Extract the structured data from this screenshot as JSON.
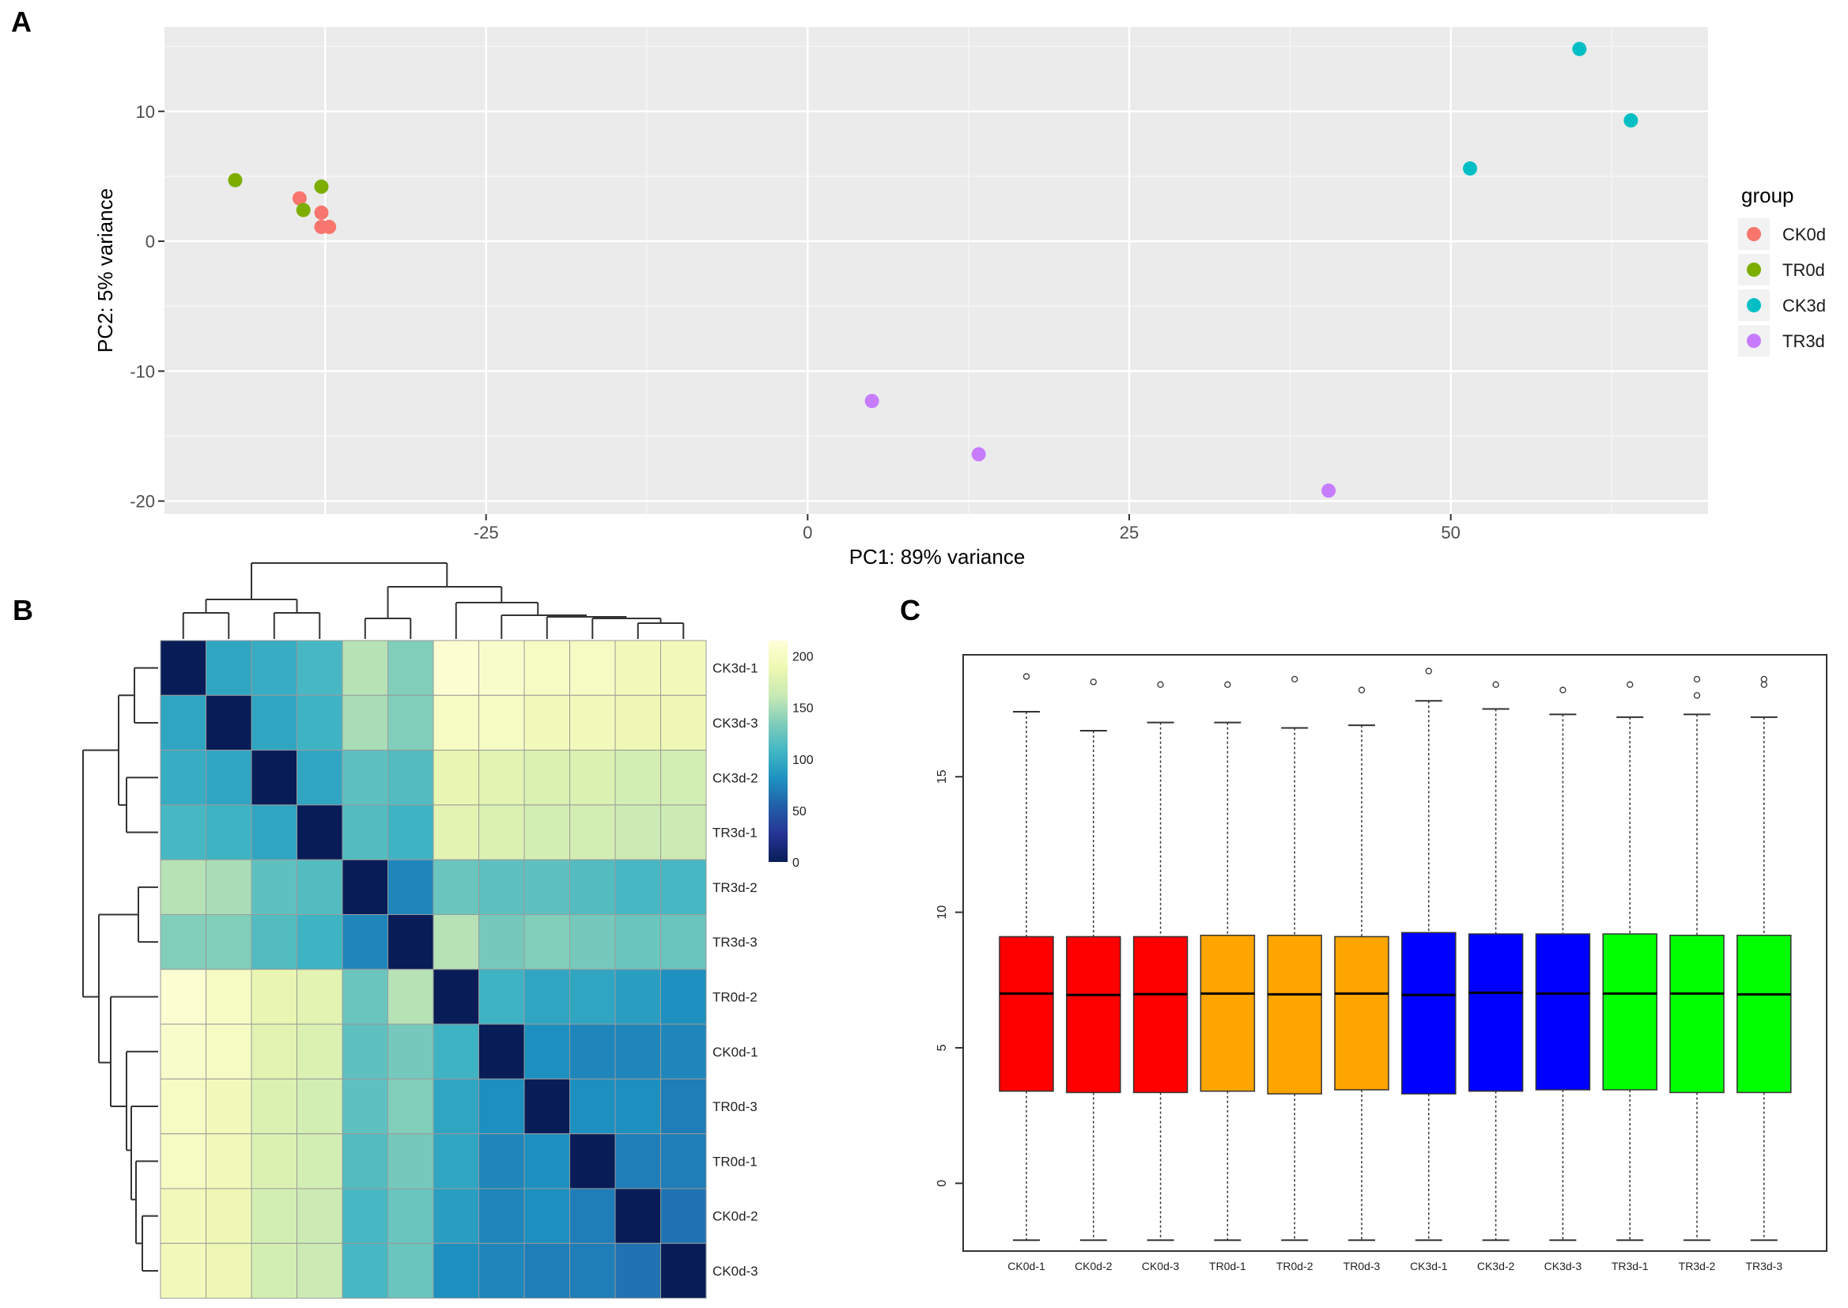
{
  "panels": {
    "a": "A",
    "b": "B",
    "c": "C"
  },
  "chart_data": [
    {
      "type": "scatter",
      "panel": "A",
      "title": "",
      "xlabel": "PC1: 89% variance",
      "ylabel": "PC2: 5% variance",
      "xlim": [
        -50,
        70
      ],
      "ylim": [
        -21,
        16.5
      ],
      "xticks": [
        -25,
        0,
        25,
        50
      ],
      "xtick_labels": [
        "-25",
        "0",
        "25",
        "50"
      ],
      "yticks": [
        10,
        0,
        -10,
        -20
      ],
      "ytick_labels": [
        "10",
        "0",
        "-10",
        "-20"
      ],
      "grid": true,
      "legend_title": "group",
      "legend_position": "right",
      "series": [
        {
          "name": "CK0d",
          "color": "#F8766D",
          "x": [
            -39.5,
            -37.8,
            -37.2,
            -37.8
          ],
          "y": [
            3.3,
            2.2,
            1.1,
            1.1
          ]
        },
        {
          "name": "TR0d",
          "color": "#7CAE00",
          "x": [
            -44.5,
            -39.2,
            -37.8
          ],
          "y": [
            4.7,
            2.4,
            4.2
          ]
        },
        {
          "name": "CK3d",
          "color": "#00BFC4",
          "x": [
            51.5,
            60,
            64
          ],
          "y": [
            5.6,
            14.8,
            9.3
          ]
        },
        {
          "name": "TR3d",
          "color": "#C77CFF",
          "x": [
            5,
            13.3,
            40.5
          ],
          "y": [
            -12.3,
            -16.4,
            -19.2
          ]
        }
      ]
    },
    {
      "type": "heatmap",
      "panel": "B",
      "row_labels": [
        "CK3d-1",
        "CK3d-3",
        "CK3d-2",
        "TR3d-1",
        "TR3d-2",
        "TR3d-3",
        "TR0d-2",
        "CK0d-1",
        "TR0d-3",
        "TR0d-1",
        "CK0d-2",
        "CK0d-3"
      ],
      "colorbar_ticks": [
        200,
        150,
        100,
        50,
        0
      ],
      "colorbar_tick_labels": [
        "200",
        "150",
        "100",
        "50",
        "0"
      ],
      "value_range": [
        0,
        215
      ],
      "values": [
        [
          0,
          95,
          100,
          110,
          155,
          135,
          210,
          205,
          200,
          200,
          195,
          195
        ],
        [
          95,
          0,
          95,
          105,
          150,
          135,
          200,
          200,
          195,
          195,
          190,
          190
        ],
        [
          100,
          95,
          0,
          95,
          120,
          115,
          185,
          180,
          175,
          175,
          170,
          170
        ],
        [
          110,
          105,
          95,
          0,
          115,
          105,
          180,
          175,
          170,
          170,
          165,
          165
        ],
        [
          155,
          150,
          120,
          115,
          0,
          75,
          125,
          120,
          120,
          115,
          110,
          110
        ],
        [
          135,
          135,
          115,
          105,
          75,
          0,
          155,
          130,
          135,
          130,
          125,
          125
        ],
        [
          210,
          200,
          185,
          180,
          125,
          155,
          0,
          105,
          95,
          95,
          90,
          80
        ],
        [
          205,
          200,
          180,
          175,
          120,
          130,
          105,
          0,
          80,
          75,
          75,
          75
        ],
        [
          200,
          195,
          175,
          170,
          120,
          135,
          95,
          80,
          0,
          80,
          80,
          70
        ],
        [
          200,
          195,
          175,
          170,
          115,
          130,
          95,
          75,
          80,
          0,
          70,
          70
        ],
        [
          195,
          190,
          170,
          165,
          110,
          125,
          90,
          75,
          80,
          70,
          0,
          65
        ],
        [
          195,
          190,
          170,
          165,
          110,
          125,
          80,
          75,
          70,
          70,
          65,
          0
        ]
      ]
    },
    {
      "type": "box",
      "panel": "C",
      "ylim": [
        -2.5,
        19.5
      ],
      "yticks": [
        0,
        5,
        10,
        15
      ],
      "ytick_labels": [
        "0",
        "5",
        "10",
        "15"
      ],
      "categories": [
        "CK0d-1",
        "CK0d-2",
        "CK0d-3",
        "TR0d-1",
        "TR0d-2",
        "TR0d-3",
        "CK3d-1",
        "CK3d-2",
        "CK3d-3",
        "TR3d-1",
        "TR3d-2",
        "TR3d-3"
      ],
      "colors": [
        "#FF0000",
        "#FF0000",
        "#FF0000",
        "#FFA500",
        "#FFA500",
        "#FFA500",
        "#0000FF",
        "#0000FF",
        "#0000FF",
        "#00FF00",
        "#00FF00",
        "#00FF00"
      ],
      "q1": [
        3.4,
        3.35,
        3.35,
        3.4,
        3.3,
        3.45,
        3.3,
        3.4,
        3.45,
        3.45,
        3.35,
        3.35
      ],
      "median": [
        7.0,
        6.95,
        6.98,
        7.0,
        6.97,
        7.0,
        6.95,
        7.03,
        7.0,
        7.0,
        7.0,
        6.97
      ],
      "q3": [
        9.1,
        9.1,
        9.1,
        9.15,
        9.15,
        9.1,
        9.25,
        9.2,
        9.2,
        9.2,
        9.15,
        9.15
      ],
      "whisker_low": [
        -2.1,
        -2.1,
        -2.1,
        -2.1,
        -2.1,
        -2.1,
        -2.1,
        -2.1,
        -2.1,
        -2.1,
        -2.1,
        -2.1
      ],
      "whisker_high": [
        17.4,
        16.7,
        17.0,
        17.0,
        16.8,
        16.9,
        17.8,
        17.5,
        17.3,
        17.2,
        17.3,
        17.2
      ],
      "outliers": [
        [
          18.7
        ],
        [
          18.5
        ],
        [
          18.4
        ],
        [
          18.4
        ],
        [
          18.6
        ],
        [
          18.2
        ],
        [
          18.9
        ],
        [
          18.4
        ],
        [
          18.2
        ],
        [
          18.4
        ],
        [
          18.6,
          18.0
        ],
        [
          18.6,
          18.4
        ]
      ]
    }
  ]
}
